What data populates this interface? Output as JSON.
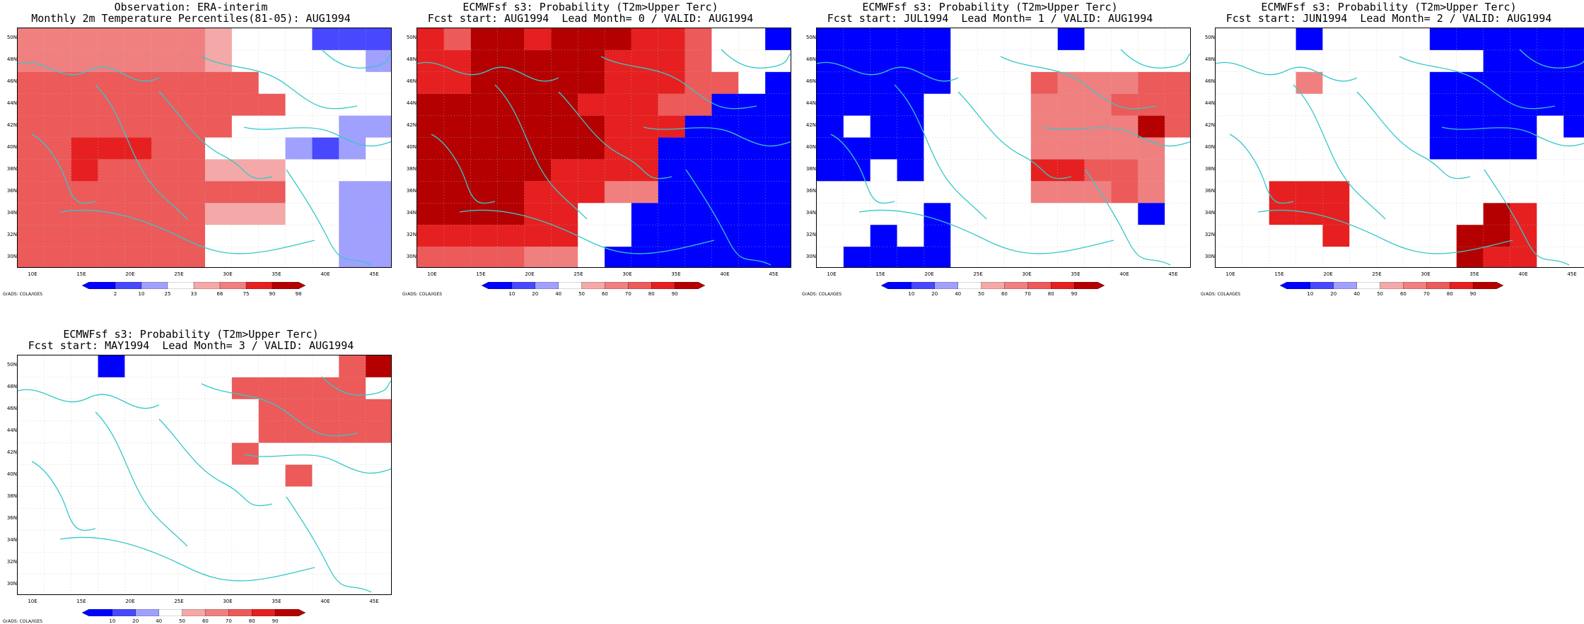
{
  "grads_credit": "GrADS: COLA/IGES",
  "lat_labels": [
    "50N",
    "48N",
    "46N",
    "44N",
    "42N",
    "40N",
    "38N",
    "36N",
    "34N",
    "32N",
    "30N"
  ],
  "lon_labels": [
    "10E",
    "15E",
    "20E",
    "25E",
    "30E",
    "35E",
    "40E",
    "45E"
  ],
  "colors": {
    "coast": "#36c8c8",
    "palette": [
      "#0000ff",
      "#4848ff",
      "#a0a0ff",
      "#ffffff",
      "#f4a8a8",
      "#f08080",
      "#ec5a5a",
      "#e62020",
      "#b40000"
    ]
  },
  "panels": [
    {
      "title1": "Observation: ERA-interim",
      "title2": "Monthly 2m Temperature Percentiles(81-05): AUG1994",
      "colorbar": {
        "labels": [
          "2",
          "10",
          "25",
          "33",
          "66",
          "75",
          "90",
          "98"
        ],
        "colors": [
          "#0000ff",
          "#4848ff",
          "#a0a0ff",
          "#ffffff",
          "#f4a8a8",
          "#f08080",
          "#e62020",
          "#b40000"
        ]
      },
      "grid": [
        "555555543..111",
        "55555554333332",
        "66666666633333",
        "66666666663333",
        "66666666333322",
        "66777663332123",
        "66766664443333",
        "66666666663322",
        "66666664443322",
        "66666663333322",
        "66666663333322"
      ]
    },
    {
      "title1": "ECMWFsf s3: Probability (T2m>Upper Terc)",
      "title2": "Fcst start: AUG1994  Lead Month= 0 / VALID: AUG1994",
      "colorbar": {
        "labels": [
          "10",
          "20",
          "40",
          "50",
          "60",
          "70",
          "80",
          "90"
        ],
        "colors": [
          "#0000ff",
          "#4848ff",
          "#a0a0ff",
          "#ffffff",
          "#f4a8a8",
          "#f08080",
          "#ec5a5a",
          "#e62020",
          "#b40000"
        ]
      },
      "grid": [
        "76887888776330",
        "77888887776333",
        "77888887776630",
        "88888877766000",
        "88888887770000",
        "88888887700000",
        "88888777700000",
        "88887775500000",
        "88887733000000",
        "77777733000000",
        "66665530000000"
      ]
    },
    {
      "title1": "ECMWFsf s3: Probability (T2m>Upper Terc)",
      "title2": "Fcst start: JUL1994  Lead Month= 1 / VALID: AUG1994",
      "colorbar": {
        "labels": [
          "10",
          "20",
          "40",
          "50",
          "60",
          "70",
          "80",
          "90"
        ],
        "colors": [
          "#0000ff",
          "#4848ff",
          "#a0a0ff",
          "#ffffff",
          "#f4a8a8",
          "#f08080",
          "#ec5a5a",
          "#e62020",
          "#b40000"
        ]
      },
      "grid": [
        "00000333303333",
        "00000333333333",
        "00000333655566",
        "00003333555666",
        "03003333555586",
        "00003333555553",
        "00303333776653",
        "33333333555653",
        "33330333333303",
        "33030333333333",
        "30000333333333"
      ]
    },
    {
      "title1": "ECMWFsf s3: Probability (T2m>Upper Terc)",
      "title2": "Fcst start: JUN1994  Lead Month= 2 / VALID: AUG1994",
      "colorbar": {
        "labels": [
          "10",
          "20",
          "40",
          "50",
          "60",
          "70",
          "80",
          "90"
        ],
        "colors": [
          "#0000ff",
          "#4848ff",
          "#a0a0ff",
          "#ffffff",
          "#f4a8a8",
          "#f08080",
          "#ec5a5a",
          "#e62020",
          "#b40000"
        ]
      },
      "grid": [
        "33303333000000",
        "33333333330000",
        "33353333000000",
        "33333333000000",
        "33333333000030",
        "33333333000033",
        "33333333333333",
        "33777333333333",
        "33777333338733",
        "33337333388733",
        "33333333387733"
      ]
    },
    {
      "title1": "ECMWFsf s3: Probability (T2m>Upper Terc)",
      "title2": "Fcst start: MAY1994  Lead Month= 3 / VALID: AUG1994",
      "colorbar": {
        "labels": [
          "10",
          "20",
          "40",
          "50",
          "60",
          "70",
          "80",
          "90"
        ],
        "colors": [
          "#0000ff",
          "#4848ff",
          "#a0a0ff",
          "#ffffff",
          "#f4a8a8",
          "#f08080",
          "#ec5a5a",
          "#e62020",
          "#b40000"
        ]
      },
      "grid": [
        "33303333333368",
        "33333333666663",
        "33333333366666",
        "33333333366666",
        "33333333633333",
        "33333333336333",
        "33333333333333",
        "33333333333333",
        "33333333333333",
        "33333333333333",
        "33333333333333"
      ]
    }
  ]
}
